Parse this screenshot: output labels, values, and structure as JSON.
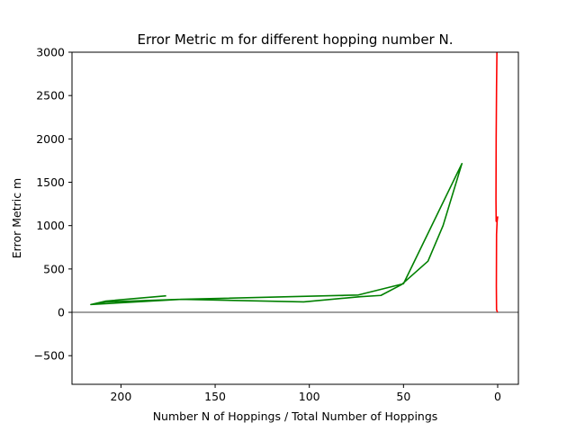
{
  "chart_data": {
    "type": "line",
    "title": "Error Metric m for different hopping number N.",
    "xlabel": "Number N of Hoppings / Total Number of Hoppings",
    "ylabel": "Error Metric m",
    "xlim": [
      226,
      -11
    ],
    "ylim": [
      -830,
      3000
    ],
    "x_inverted": true,
    "grid": false,
    "legend": "none",
    "xticks": [
      200,
      150,
      100,
      50,
      0
    ],
    "yticks": [
      -500,
      0,
      500,
      1000,
      1500,
      2000,
      2500,
      3000
    ],
    "reference_lines": [
      {
        "orientation": "horizontal",
        "y": 0,
        "color": "#808080"
      }
    ],
    "series": [
      {
        "color": "#008000",
        "x": [
          176,
          208,
          216,
          168,
          103,
          73,
          62,
          51,
          37,
          29,
          19,
          50,
          74,
          168,
          208,
          215
        ],
        "y": [
          190,
          130,
          90,
          150,
          120,
          180,
          195,
          320,
          590,
          1000,
          1715,
          330,
          200,
          150,
          120,
          95
        ]
      },
      {
        "color": "#ff0000",
        "x": [
          0.1,
          0.6,
          0.7,
          0.6,
          0.3,
          0.0,
          0.8,
          0.9,
          0.8,
          0.6,
          0.4
        ],
        "y": [
          0,
          30,
          300,
          900,
          1050,
          1100,
          1050,
          1300,
          2000,
          2600,
          3000
        ]
      }
    ]
  }
}
